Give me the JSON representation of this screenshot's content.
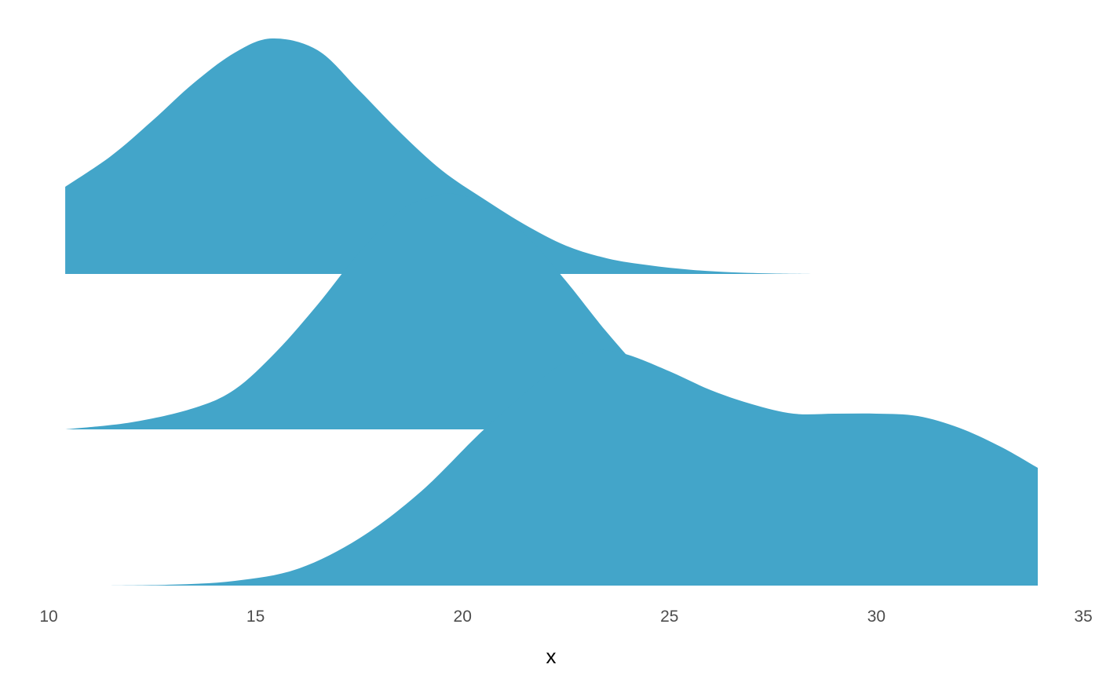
{
  "chart_data": {
    "type": "area",
    "subtype": "ridgeline-density",
    "xlabel": "x",
    "ylabel": "",
    "xlim": [
      10,
      35
    ],
    "x_ticks": [
      "10",
      "15",
      "20",
      "25",
      "30",
      "35"
    ],
    "grid": false,
    "fill_color": "#43a5c9",
    "series": [
      {
        "x": [
          10.4,
          11.5,
          12.5,
          13.5,
          14.5,
          15.4,
          16.5,
          17.5,
          18.5,
          19.5,
          20.5,
          21.5,
          22.5,
          23.5,
          24.5,
          25.5,
          26.5,
          27.5,
          28.2,
          29.0
        ],
        "density": [
          0.37,
          0.5,
          0.65,
          0.81,
          0.94,
          1.0,
          0.95,
          0.78,
          0.6,
          0.44,
          0.32,
          0.21,
          0.12,
          0.066,
          0.037,
          0.018,
          0.007,
          0.002,
          0.0005,
          0.0
        ]
      },
      {
        "x": [
          10.4,
          12.0,
          13.5,
          14.5,
          15.5,
          16.5,
          17.5,
          18.5,
          19.3,
          19.8,
          20.5,
          21.5,
          22.5,
          23.5,
          24.5,
          25.5,
          26.5,
          27.5,
          28.5,
          29.5,
          30.5,
          31.5
        ],
        "density": [
          0.0,
          0.03,
          0.09,
          0.17,
          0.33,
          0.53,
          0.75,
          0.93,
          0.99,
          1.0,
          0.96,
          0.83,
          0.63,
          0.41,
          0.22,
          0.1,
          0.045,
          0.018,
          0.008,
          0.003,
          0.001,
          0.0
        ]
      },
      {
        "x": [
          11.5,
          13.0,
          14.5,
          16.0,
          17.5,
          19.0,
          20.5,
          22.0,
          22.7,
          23.3,
          24.0,
          25.0,
          26.0,
          27.0,
          28.0,
          29.0,
          30.0,
          31.0,
          32.0,
          33.0,
          33.9
        ],
        "density": [
          0.0,
          0.004,
          0.02,
          0.07,
          0.2,
          0.4,
          0.66,
          0.89,
          0.97,
          1.0,
          0.98,
          0.91,
          0.83,
          0.77,
          0.73,
          0.73,
          0.73,
          0.72,
          0.67,
          0.59,
          0.5
        ]
      }
    ]
  }
}
